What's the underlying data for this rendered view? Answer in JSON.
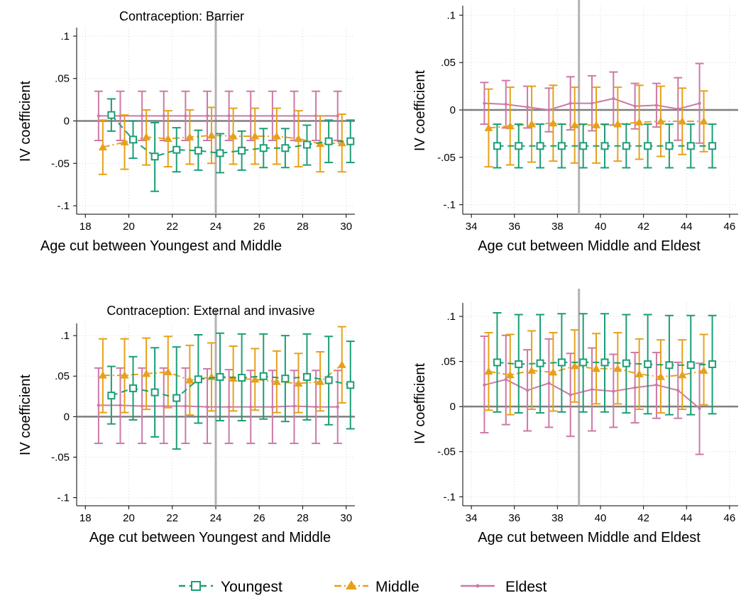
{
  "chart_data": [
    {
      "type": "line",
      "title": "Contraception: Barrier",
      "xlabel": "Age cut between Youngest and Middle",
      "ylabel": "IV coefficient",
      "xlim": [
        17.6,
        30.4
      ],
      "ylim": [
        -0.11,
        0.11
      ],
      "xticks": [
        18,
        20,
        22,
        24,
        26,
        28,
        30
      ],
      "yticks": [
        -0.1,
        -0.05,
        0,
        0.05,
        0.1
      ],
      "ytick_labels": [
        "-.1",
        "-.05",
        "0",
        ".05",
        ".1"
      ],
      "grid": true,
      "ref_line_x": 24,
      "ref_line_y": 0,
      "series": [
        {
          "name": "Youngest",
          "x": [
            19,
            20,
            21,
            22,
            23,
            24,
            25,
            26,
            27,
            28,
            29,
            30
          ],
          "y": [
            0.007,
            -0.022,
            -0.042,
            -0.034,
            -0.035,
            -0.038,
            -0.035,
            -0.032,
            -0.032,
            -0.028,
            -0.024,
            -0.024
          ],
          "lo": [
            -0.012,
            -0.044,
            -0.083,
            -0.06,
            -0.058,
            -0.061,
            -0.058,
            -0.055,
            -0.055,
            -0.052,
            -0.049,
            -0.049
          ],
          "hi": [
            0.026,
            0.0,
            -0.002,
            -0.008,
            -0.011,
            -0.015,
            -0.012,
            -0.009,
            -0.009,
            -0.005,
            0.001,
            0.001
          ]
        },
        {
          "name": "Middle",
          "x": [
            19,
            20,
            21,
            22,
            23,
            24,
            25,
            26,
            27,
            28,
            29,
            30
          ],
          "y": [
            -0.031,
            -0.025,
            -0.019,
            -0.021,
            -0.019,
            -0.017,
            -0.018,
            -0.018,
            -0.018,
            -0.021,
            -0.027,
            -0.026
          ],
          "lo": [
            -0.063,
            -0.057,
            -0.052,
            -0.054,
            -0.051,
            -0.05,
            -0.051,
            -0.051,
            -0.051,
            -0.054,
            -0.06,
            -0.06
          ],
          "hi": [
            0.001,
            0.007,
            0.013,
            0.012,
            0.013,
            0.016,
            0.015,
            0.015,
            0.015,
            0.012,
            0.006,
            0.008
          ]
        },
        {
          "name": "Eldest",
          "x": [
            19,
            20,
            21,
            22,
            23,
            24,
            25,
            26,
            27,
            28,
            29,
            30
          ],
          "y": [
            0.006,
            0.006,
            0.006,
            0.006,
            0.006,
            0.006,
            0.006,
            0.006,
            0.006,
            0.006,
            0.006,
            0.006
          ],
          "lo": [
            -0.023,
            -0.023,
            -0.023,
            -0.023,
            -0.023,
            -0.023,
            -0.023,
            -0.023,
            -0.023,
            -0.023,
            -0.023,
            -0.023
          ],
          "hi": [
            0.035,
            0.035,
            0.035,
            0.035,
            0.035,
            0.035,
            0.035,
            0.035,
            0.035,
            0.035,
            0.035,
            0.035
          ]
        }
      ]
    },
    {
      "type": "line",
      "title": "",
      "xlabel": "Age cut between Middle and Eldest",
      "ylabel": "IV coefficient",
      "xlim": [
        33.6,
        46.4
      ],
      "ylim": [
        -0.11,
        0.11
      ],
      "xticks": [
        34,
        36,
        38,
        40,
        42,
        44,
        46
      ],
      "yticks": [
        -0.1,
        -0.05,
        0,
        0.05,
        0.1
      ],
      "ytick_labels": [
        "-.1",
        "-.05",
        "0",
        ".05",
        ".1"
      ],
      "grid": true,
      "ref_line_x": 39,
      "ref_line_y": 0,
      "series": [
        {
          "name": "Youngest",
          "x": [
            35,
            36,
            37,
            38,
            39,
            40,
            41,
            42,
            43,
            44,
            45
          ],
          "y": [
            -0.038,
            -0.038,
            -0.038,
            -0.038,
            -0.038,
            -0.038,
            -0.038,
            -0.038,
            -0.038,
            -0.038,
            -0.038
          ],
          "lo": [
            -0.061,
            -0.061,
            -0.061,
            -0.061,
            -0.061,
            -0.061,
            -0.061,
            -0.061,
            -0.061,
            -0.061,
            -0.061
          ],
          "hi": [
            -0.015,
            -0.015,
            -0.015,
            -0.015,
            -0.015,
            -0.015,
            -0.015,
            -0.015,
            -0.015,
            -0.015,
            -0.015
          ]
        },
        {
          "name": "Middle",
          "x": [
            35,
            36,
            37,
            38,
            39,
            40,
            41,
            42,
            43,
            44,
            45
          ],
          "y": [
            -0.019,
            -0.017,
            -0.015,
            -0.014,
            -0.016,
            -0.016,
            -0.015,
            -0.013,
            -0.012,
            -0.012,
            -0.012
          ],
          "lo": [
            -0.06,
            -0.058,
            -0.055,
            -0.054,
            -0.056,
            -0.056,
            -0.054,
            -0.052,
            -0.049,
            -0.047,
            -0.044
          ],
          "hi": [
            0.022,
            0.024,
            0.025,
            0.026,
            0.024,
            0.024,
            0.024,
            0.026,
            0.025,
            0.023,
            0.02
          ]
        },
        {
          "name": "Eldest",
          "x": [
            35,
            36,
            37,
            38,
            39,
            40,
            41,
            42,
            43,
            44,
            45
          ],
          "y": [
            0.007,
            0.006,
            0.003,
            0.0,
            0.007,
            0.007,
            0.012,
            0.004,
            0.005,
            0.001,
            0.007
          ],
          "lo": [
            -0.015,
            -0.019,
            -0.019,
            -0.023,
            -0.021,
            -0.022,
            -0.016,
            -0.02,
            -0.018,
            -0.032,
            -0.035
          ],
          "hi": [
            0.029,
            0.031,
            0.025,
            0.023,
            0.035,
            0.036,
            0.04,
            0.028,
            0.028,
            0.034,
            0.049
          ]
        }
      ]
    },
    {
      "type": "line",
      "title": "Contraception: External and invasive",
      "xlabel": "Age cut between Youngest and Middle",
      "ylabel": "IV coefficient",
      "xlim": [
        17.6,
        30.4
      ],
      "ylim": [
        -0.11,
        0.115
      ],
      "xticks": [
        18,
        20,
        22,
        24,
        26,
        28,
        30
      ],
      "yticks": [
        -0.1,
        -0.05,
        0,
        0.05,
        0.1
      ],
      "ytick_labels": [
        "-.1",
        "-.05",
        "0",
        ".05",
        ".1"
      ],
      "grid": true,
      "ref_line_x": 24,
      "ref_line_y": 0,
      "series": [
        {
          "name": "Youngest",
          "x": [
            19,
            20,
            21,
            22,
            23,
            24,
            25,
            26,
            27,
            28,
            29,
            30
          ],
          "y": [
            0.026,
            0.035,
            0.03,
            0.023,
            0.046,
            0.049,
            0.048,
            0.05,
            0.047,
            0.049,
            0.045,
            0.039
          ],
          "lo": [
            -0.009,
            -0.004,
            -0.025,
            -0.04,
            -0.008,
            -0.005,
            -0.005,
            -0.003,
            -0.006,
            -0.004,
            -0.01,
            -0.015
          ],
          "hi": [
            0.062,
            0.074,
            0.085,
            0.086,
            0.101,
            0.103,
            0.102,
            0.102,
            0.1,
            0.102,
            0.099,
            0.093
          ]
        },
        {
          "name": "Middle",
          "x": [
            19,
            20,
            21,
            22,
            23,
            24,
            25,
            26,
            27,
            28,
            29,
            30
          ],
          "y": [
            0.051,
            0.051,
            0.053,
            0.055,
            0.045,
            0.049,
            0.047,
            0.046,
            0.043,
            0.041,
            0.043,
            0.064
          ],
          "lo": [
            0.005,
            0.005,
            0.009,
            0.011,
            0.002,
            0.007,
            0.007,
            0.008,
            0.005,
            0.005,
            0.007,
            0.017
          ],
          "hi": [
            0.096,
            0.096,
            0.097,
            0.099,
            0.088,
            0.091,
            0.087,
            0.084,
            0.081,
            0.078,
            0.08,
            0.111
          ]
        },
        {
          "name": "Eldest",
          "x": [
            19,
            20,
            21,
            22,
            23,
            24,
            25,
            26,
            27,
            28,
            29,
            30
          ],
          "y": [
            0.014,
            0.014,
            0.013,
            0.013,
            0.013,
            0.012,
            0.012,
            0.012,
            0.012,
            0.013,
            0.012,
            0.012
          ],
          "lo": [
            -0.033,
            -0.033,
            -0.033,
            -0.033,
            -0.033,
            -0.033,
            -0.033,
            -0.033,
            -0.033,
            -0.033,
            -0.033,
            -0.033
          ],
          "hi": [
            0.06,
            0.06,
            0.06,
            0.06,
            0.06,
            0.059,
            0.058,
            0.057,
            0.057,
            0.057,
            0.057,
            0.057
          ]
        }
      ]
    },
    {
      "type": "line",
      "title": "",
      "xlabel": "Age cut between Middle and Eldest",
      "ylabel": "IV coefficient",
      "xlim": [
        33.6,
        46.4
      ],
      "ylim": [
        -0.11,
        0.115
      ],
      "xticks": [
        34,
        36,
        38,
        40,
        42,
        44,
        46
      ],
      "yticks": [
        -0.1,
        -0.05,
        0,
        0.05,
        0.1
      ],
      "ytick_labels": [
        "-.1",
        "-.05",
        "0",
        ".05",
        ".1"
      ],
      "grid": true,
      "ref_line_x": 39,
      "ref_line_y": 0,
      "series": [
        {
          "name": "Youngest",
          "x": [
            35,
            36,
            37,
            38,
            39,
            40,
            41,
            42,
            43,
            44,
            45
          ],
          "y": [
            0.049,
            0.047,
            0.048,
            0.049,
            0.049,
            0.049,
            0.048,
            0.047,
            0.046,
            0.046,
            0.047
          ],
          "lo": [
            -0.006,
            -0.007,
            -0.007,
            -0.006,
            -0.006,
            -0.006,
            -0.007,
            -0.008,
            -0.009,
            -0.009,
            -0.008
          ],
          "hi": [
            0.104,
            0.102,
            0.102,
            0.103,
            0.103,
            0.103,
            0.102,
            0.102,
            0.101,
            0.101,
            0.101
          ]
        },
        {
          "name": "Middle",
          "x": [
            35,
            36,
            37,
            38,
            39,
            40,
            41,
            42,
            43,
            44,
            45
          ],
          "y": [
            0.039,
            0.035,
            0.04,
            0.038,
            0.045,
            0.042,
            0.042,
            0.036,
            0.033,
            0.035,
            0.04
          ],
          "lo": [
            -0.004,
            -0.009,
            -0.003,
            -0.005,
            0.005,
            0.003,
            0.003,
            -0.003,
            -0.007,
            -0.003,
            0.002
          ],
          "hi": [
            0.082,
            0.08,
            0.084,
            0.082,
            0.085,
            0.081,
            0.082,
            0.075,
            0.074,
            0.074,
            0.08
          ]
        },
        {
          "name": "Eldest",
          "x": [
            35,
            36,
            37,
            38,
            39,
            40,
            41,
            42,
            43,
            44,
            45
          ],
          "y": [
            0.024,
            0.03,
            0.018,
            0.026,
            0.013,
            0.019,
            0.017,
            0.021,
            0.024,
            0.018,
            -0.002
          ],
          "lo": [
            -0.029,
            -0.02,
            -0.027,
            -0.023,
            -0.033,
            -0.027,
            -0.023,
            -0.018,
            -0.013,
            -0.013,
            -0.053
          ],
          "hi": [
            0.078,
            0.079,
            0.063,
            0.075,
            0.059,
            0.065,
            0.058,
            0.06,
            0.06,
            0.049,
            0.048
          ]
        }
      ]
    }
  ],
  "legend": {
    "placement": "bottom",
    "items": [
      {
        "label": "Youngest",
        "color": "#1b9e77",
        "marker": "square-hollow",
        "dash": "dash"
      },
      {
        "label": "Middle",
        "color": "#e6a11a",
        "marker": "triangle",
        "dash": "dashdot"
      },
      {
        "label": "Eldest",
        "color": "#cc79a7",
        "marker": "dot",
        "dash": "solid"
      }
    ]
  },
  "colors": {
    "Youngest": "#1b9e77",
    "Middle": "#e6a11a",
    "Eldest": "#cc79a7",
    "ref_line_x": "#b3b3b3",
    "ref_line_y": "#7f7f7f",
    "grid": "#d9d9d9"
  }
}
